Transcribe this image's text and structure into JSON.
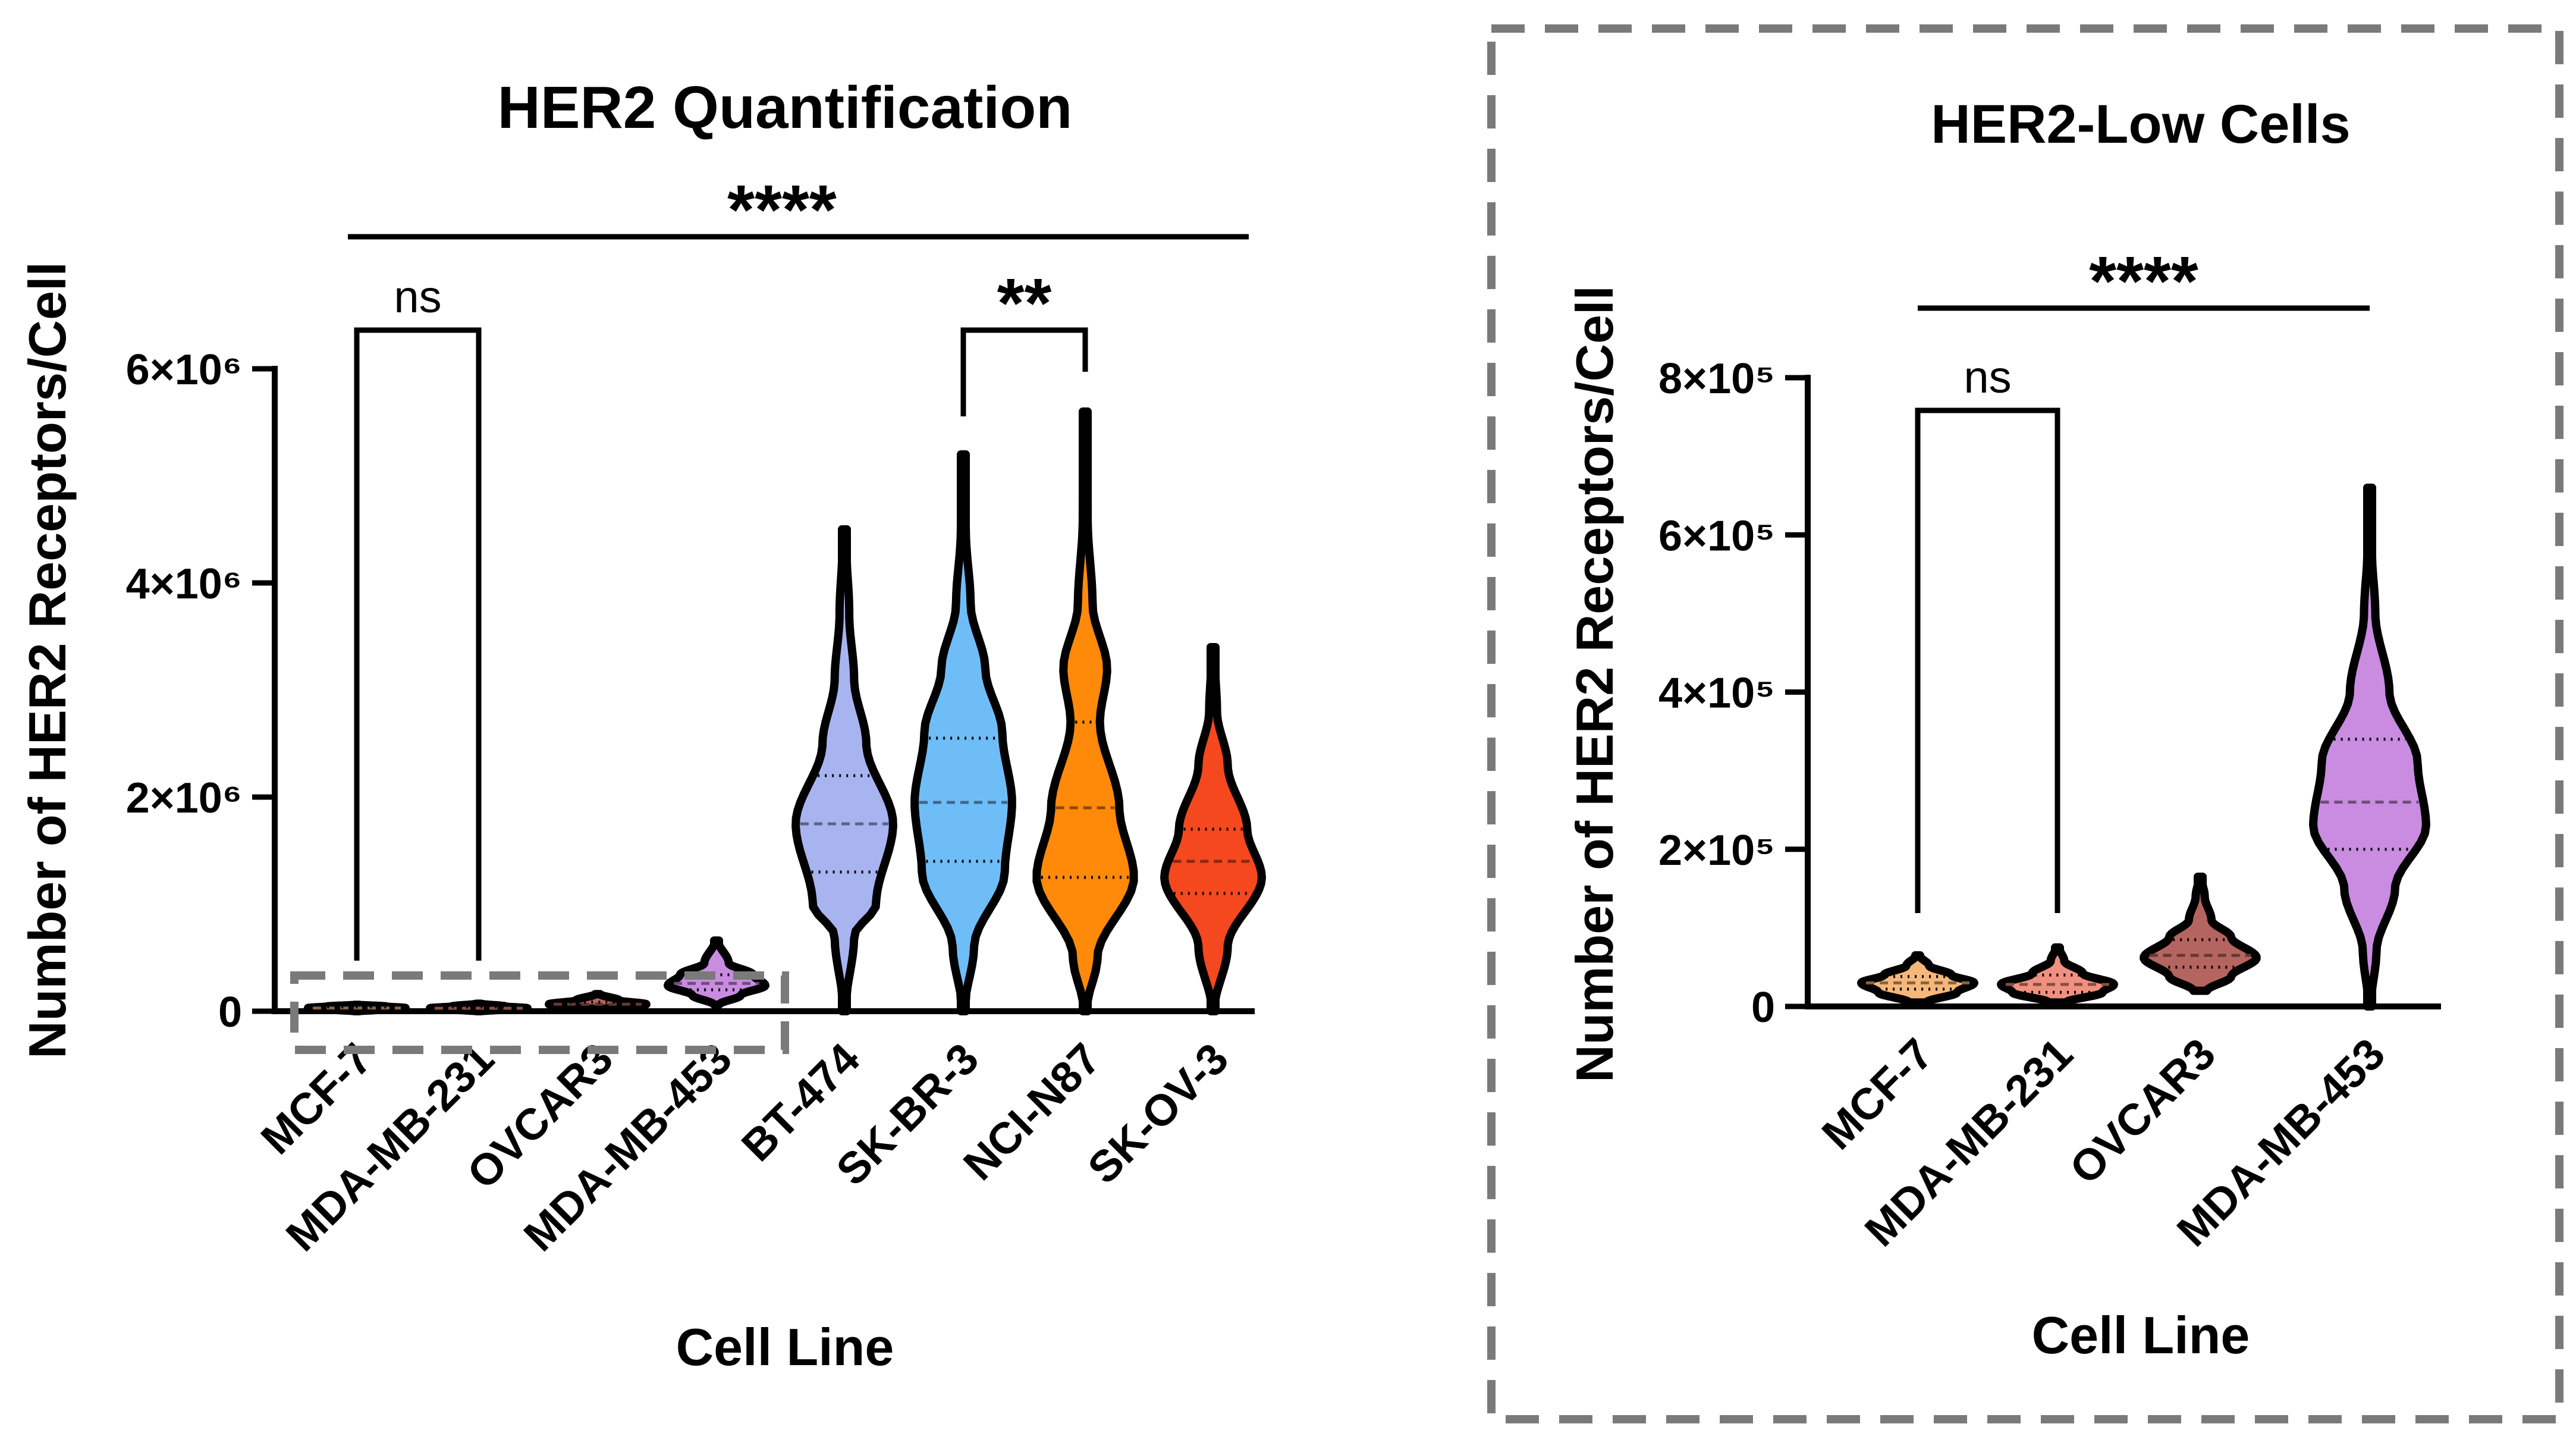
{
  "chart_data": [
    {
      "type": "violin",
      "title": "HER2 Quantification",
      "xlabel": "Cell Line",
      "ylabel": "Number of HER2 Receptors/Cell",
      "ylim": [
        0,
        6000000
      ],
      "yticks": [
        {
          "value": 0,
          "label": "0"
        },
        {
          "value": 2000000,
          "label": "2×10⁶"
        },
        {
          "value": 4000000,
          "label": "4×10⁶"
        },
        {
          "value": 6000000,
          "label": "6×10⁶"
        }
      ],
      "categories": [
        "MCF-7",
        "MDA-MB-231",
        "OVCAR3",
        "MDA-MB-453",
        "BT-474",
        "SK-BR-3",
        "NCI-N87",
        "SK-OV-3"
      ],
      "series": [
        {
          "color": "#F5B87A",
          "min": 0,
          "max": 60000,
          "q1": 20000,
          "median": 30000,
          "q3": 40000,
          "profile": [
            [
              0,
              0.05
            ],
            [
              15000,
              0.5
            ],
            [
              30000,
              1
            ],
            [
              45000,
              0.6
            ],
            [
              60000,
              0.05
            ]
          ]
        },
        {
          "color": "#F0907E",
          "min": 0,
          "max": 70000,
          "q1": 18000,
          "median": 28000,
          "q3": 40000,
          "profile": [
            [
              0,
              0.05
            ],
            [
              15000,
              0.5
            ],
            [
              28000,
              1
            ],
            [
              45000,
              0.55
            ],
            [
              70000,
              0.05
            ]
          ]
        },
        {
          "color": "#B5655F",
          "min": 20000,
          "max": 160000,
          "q1": 50000,
          "median": 65000,
          "q3": 85000,
          "profile": [
            [
              20000,
              0.1
            ],
            [
              45000,
              0.6
            ],
            [
              65000,
              1
            ],
            [
              100000,
              0.45
            ],
            [
              160000,
              0.05
            ]
          ]
        },
        {
          "color": "#C98CE0",
          "min": 60000,
          "max": 660000,
          "q1": 200000,
          "median": 260000,
          "q3": 340000,
          "profile": [
            [
              60000,
              0.05
            ],
            [
              150000,
              0.5
            ],
            [
              240000,
              1
            ],
            [
              340000,
              0.75
            ],
            [
              450000,
              0.25
            ],
            [
              660000,
              0.03
            ]
          ]
        },
        {
          "color": "#A8B4F0",
          "min": 0,
          "max": 4500000,
          "q1": 1300000,
          "median": 1750000,
          "q3": 2200000,
          "profile": [
            [
              0,
              0.02
            ],
            [
              700000,
              0.2
            ],
            [
              1000000,
              0.65
            ],
            [
              1750000,
              1
            ],
            [
              2500000,
              0.45
            ],
            [
              3100000,
              0.2
            ],
            [
              3700000,
              0.1
            ],
            [
              4500000,
              0.02
            ]
          ]
        },
        {
          "color": "#6FBDF7",
          "min": 0,
          "max": 5200000,
          "q1": 1400000,
          "median": 1950000,
          "q3": 2550000,
          "profile": [
            [
              0,
              0.02
            ],
            [
              600000,
              0.22
            ],
            [
              1300000,
              0.85
            ],
            [
              1950000,
              1
            ],
            [
              2600000,
              0.8
            ],
            [
              3200000,
              0.45
            ],
            [
              3800000,
              0.15
            ],
            [
              4500000,
              0.05
            ],
            [
              5200000,
              0.02
            ]
          ]
        },
        {
          "color": "#FF8A0A",
          "min": 0,
          "max": 5600000,
          "q1": 1250000,
          "median": 1900000,
          "q3": 2700000,
          "profile": [
            [
              0,
              0.02
            ],
            [
              500000,
              0.25
            ],
            [
              1250000,
              1
            ],
            [
              1900000,
              0.7
            ],
            [
              2700000,
              0.3
            ],
            [
              3200000,
              0.45
            ],
            [
              3800000,
              0.15
            ],
            [
              4600000,
              0.05
            ],
            [
              5600000,
              0.02
            ]
          ]
        },
        {
          "color": "#F5481E",
          "min": 0,
          "max": 3400000,
          "q1": 1100000,
          "median": 1400000,
          "q3": 1700000,
          "profile": [
            [
              0,
              0.02
            ],
            [
              600000,
              0.3
            ],
            [
              1250000,
              1
            ],
            [
              1700000,
              0.7
            ],
            [
              2300000,
              0.3
            ],
            [
              2800000,
              0.08
            ],
            [
              3400000,
              0.02
            ]
          ]
        }
      ],
      "significance": [
        {
          "label": "****",
          "from": "MCF-7",
          "to": "SK-OV-3"
        },
        {
          "label": "ns",
          "from": "MCF-7",
          "to": "MDA-MB-231"
        },
        {
          "label": "**",
          "from": "SK-BR-3",
          "to": "NCI-N87"
        }
      ],
      "highlight_box": {
        "from": "MCF-7",
        "to": "MDA-MB-453",
        "ymax": 1000000
      }
    },
    {
      "type": "violin",
      "title": "HER2-Low Cells",
      "xlabel": "Cell Line",
      "ylabel": "Number of HER2 Receptors/Cell",
      "ylim": [
        0,
        800000
      ],
      "yticks": [
        {
          "value": 0,
          "label": "0"
        },
        {
          "value": 200000,
          "label": "2×10⁵"
        },
        {
          "value": 400000,
          "label": "4×10⁵"
        },
        {
          "value": 600000,
          "label": "6×10⁵"
        },
        {
          "value": 800000,
          "label": "8×10⁵"
        }
      ],
      "categories": [
        "MCF-7",
        "MDA-MB-231",
        "OVCAR3",
        "MDA-MB-453"
      ],
      "series": [
        {
          "color": "#F5B87A",
          "min": 5000,
          "max": 65000,
          "q1": 22000,
          "median": 30000,
          "q3": 38000,
          "profile": [
            [
              5000,
              0.15
            ],
            [
              18000,
              0.7
            ],
            [
              30000,
              1
            ],
            [
              40000,
              0.6
            ],
            [
              52000,
              0.2
            ],
            [
              65000,
              0.03
            ]
          ]
        },
        {
          "color": "#F0907E",
          "min": 5000,
          "max": 75000,
          "q1": 18000,
          "median": 28000,
          "q3": 40000,
          "profile": [
            [
              5000,
              0.15
            ],
            [
              18000,
              0.8
            ],
            [
              28000,
              1
            ],
            [
              42000,
              0.45
            ],
            [
              58000,
              0.12
            ],
            [
              75000,
              0.03
            ]
          ]
        },
        {
          "color": "#B5655F",
          "min": 20000,
          "max": 165000,
          "q1": 50000,
          "median": 65000,
          "q3": 85000,
          "profile": [
            [
              20000,
              0.12
            ],
            [
              38000,
              0.55
            ],
            [
              62000,
              1
            ],
            [
              88000,
              0.55
            ],
            [
              110000,
              0.2
            ],
            [
              140000,
              0.08
            ],
            [
              165000,
              0.02
            ]
          ]
        },
        {
          "color": "#C98CE0",
          "min": 0,
          "max": 660000,
          "q1": 200000,
          "median": 260000,
          "q3": 340000,
          "profile": [
            [
              0,
              0.02
            ],
            [
              70000,
              0.12
            ],
            [
              150000,
              0.45
            ],
            [
              230000,
              1
            ],
            [
              310000,
              0.85
            ],
            [
              400000,
              0.35
            ],
            [
              500000,
              0.1
            ],
            [
              580000,
              0.04
            ],
            [
              660000,
              0.01
            ]
          ]
        }
      ],
      "significance": [
        {
          "label": "****",
          "from": "MCF-7",
          "to": "MDA-MB-453"
        },
        {
          "label": "ns",
          "from": "MCF-7",
          "to": "MDA-MB-231"
        }
      ]
    }
  ]
}
